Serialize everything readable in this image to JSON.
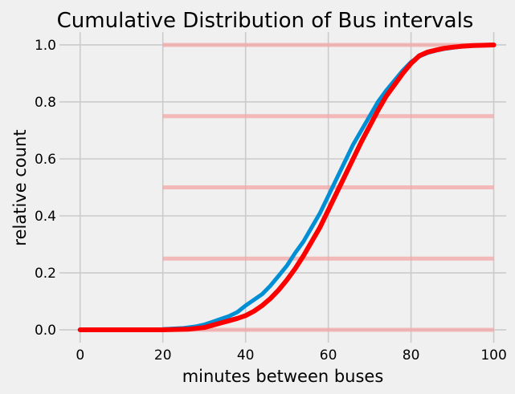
{
  "chart_data": {
    "type": "line",
    "title": "Cumulative Distribution of Bus intervals",
    "xlabel": "minutes between buses",
    "ylabel": "relative count",
    "xlim": [
      -5,
      103
    ],
    "ylim": [
      -0.045,
      1.045
    ],
    "xticks": [
      0,
      20,
      40,
      60,
      80,
      100
    ],
    "xtick_labels": [
      "0",
      "20",
      "40",
      "60",
      "80",
      "100"
    ],
    "yticks": [
      0.0,
      0.2,
      0.4,
      0.6,
      0.8,
      1.0
    ],
    "ytick_labels": [
      "0.0",
      "0.2",
      "0.4",
      "0.6",
      "0.8",
      "1.0"
    ],
    "grid": true,
    "series": [
      {
        "color": "#008fd5",
        "x": [
          20,
          25,
          28,
          30,
          32,
          34,
          36,
          38,
          40,
          42,
          44,
          46,
          48,
          50,
          52,
          54,
          56,
          58,
          60,
          62,
          64,
          66,
          68,
          70,
          72,
          74,
          76,
          78,
          80,
          82,
          84,
          86,
          88,
          90,
          92,
          95,
          100
        ],
        "y": [
          0.002,
          0.006,
          0.012,
          0.018,
          0.028,
          0.038,
          0.048,
          0.062,
          0.085,
          0.105,
          0.125,
          0.155,
          0.19,
          0.225,
          0.27,
          0.31,
          0.36,
          0.41,
          0.47,
          0.53,
          0.59,
          0.65,
          0.7,
          0.75,
          0.8,
          0.84,
          0.875,
          0.91,
          0.94,
          0.96,
          0.972,
          0.98,
          0.986,
          0.99,
          0.994,
          0.998,
          1.0
        ]
      },
      {
        "color": "#fc0000",
        "x": [
          0,
          20,
          26,
          30,
          32,
          34,
          36,
          38,
          40,
          42,
          44,
          46,
          48,
          50,
          52,
          54,
          56,
          58,
          60,
          62,
          64,
          66,
          68,
          70,
          72,
          74,
          76,
          78,
          80,
          82,
          84,
          86,
          88,
          90,
          92,
          95,
          100
        ],
        "y": [
          0.0,
          0.0,
          0.002,
          0.008,
          0.016,
          0.024,
          0.032,
          0.04,
          0.05,
          0.065,
          0.085,
          0.11,
          0.14,
          0.175,
          0.215,
          0.26,
          0.31,
          0.36,
          0.42,
          0.48,
          0.54,
          0.6,
          0.66,
          0.715,
          0.77,
          0.82,
          0.86,
          0.9,
          0.935,
          0.962,
          0.975,
          0.982,
          0.988,
          0.992,
          0.995,
          0.998,
          1.0
        ]
      }
    ],
    "reference_lines": {
      "color": "#f4a6a6",
      "x_range": [
        20,
        100
      ],
      "y_values": [
        0.0,
        0.25,
        0.5,
        0.75,
        1.0
      ]
    }
  }
}
